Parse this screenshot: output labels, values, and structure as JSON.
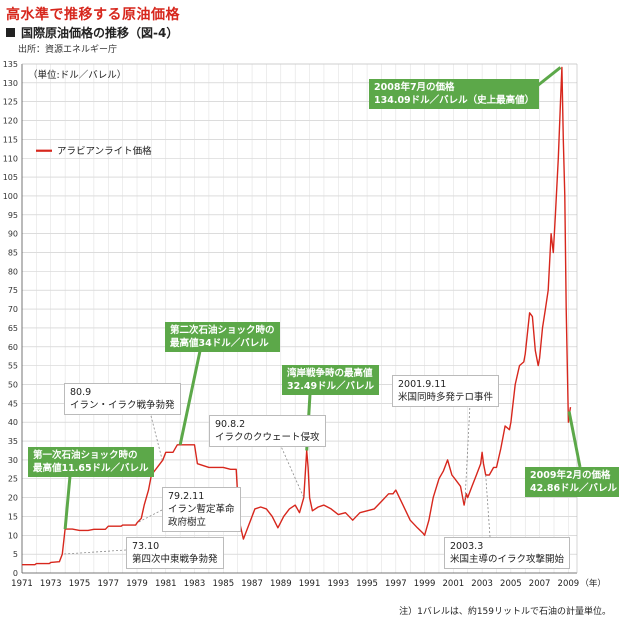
{
  "header": {
    "title": "高水準で推移する原油価格",
    "subtitle": "国際原油価格の推移（図-4）",
    "source": "出所：資源エネルギー庁"
  },
  "footnote": "注）1バレルは、約159リットルで石油の計量単位。",
  "colors": {
    "line": "#d7271d",
    "callout_green": "#5ca849",
    "title": "#d7271d"
  },
  "chart_data": {
    "type": "line",
    "ylabel": "（単位:ドル／バレル）",
    "xlabel_suffix": "（年）",
    "ylim": [
      0,
      135
    ],
    "xlim": [
      1971,
      2009.6
    ],
    "grid": true,
    "legend_position": "top-left",
    "y_ticks": [
      0,
      5,
      10,
      15,
      20,
      25,
      30,
      35,
      40,
      45,
      50,
      55,
      60,
      65,
      70,
      75,
      80,
      85,
      90,
      95,
      100,
      105,
      110,
      115,
      120,
      125,
      130,
      135
    ],
    "x_tick_labels": [
      "1971",
      "1973",
      "1975",
      "1977",
      "1979",
      "1981",
      "1983",
      "1985",
      "1987",
      "1989",
      "1991",
      "1993",
      "1995",
      "1997",
      "1999",
      "2001",
      "2003",
      "2005",
      "2007",
      "2009"
    ],
    "series": [
      {
        "name": "アラビアンライト価格",
        "color": "#d7271d",
        "x": [
          1971.0,
          1971.9,
          1972.0,
          1972.9,
          1973.0,
          1973.6,
          1973.8,
          1974.0,
          1974.5,
          1975.0,
          1975.6,
          1976.0,
          1976.8,
          1977.0,
          1977.9,
          1978.0,
          1978.9,
          1979.0,
          1979.3,
          1979.5,
          1979.8,
          1980.0,
          1980.4,
          1980.8,
          1981.0,
          1981.5,
          1981.8,
          1982.5,
          1983.0,
          1983.2,
          1984.0,
          1985.0,
          1985.5,
          1985.9,
          1986.1,
          1986.4,
          1986.6,
          1986.9,
          1987.2,
          1987.6,
          1988.0,
          1988.4,
          1988.8,
          1989.2,
          1989.6,
          1990.0,
          1990.3,
          1990.6,
          1990.8,
          1990.9,
          1991.0,
          1991.2,
          1991.6,
          1992.0,
          1992.5,
          1993.0,
          1993.5,
          1994.0,
          1994.5,
          1995.0,
          1995.5,
          1996.0,
          1996.5,
          1996.8,
          1997.0,
          1997.5,
          1998.0,
          1998.5,
          1998.9,
          1999.0,
          1999.3,
          1999.6,
          2000.0,
          2000.3,
          2000.6,
          2000.9,
          2001.1,
          2001.5,
          2001.75,
          2001.9,
          2002.0,
          2002.3,
          2002.6,
          2002.9,
          2003.0,
          2003.1,
          2003.25,
          2003.5,
          2003.8,
          2004.0,
          2004.3,
          2004.6,
          2004.9,
          2005.0,
          2005.3,
          2005.6,
          2005.9,
          2006.0,
          2006.3,
          2006.5,
          2006.7,
          2006.9,
          2007.0,
          2007.2,
          2007.4,
          2007.6,
          2007.8,
          2007.95,
          2008.1,
          2008.3,
          2008.45,
          2008.55,
          2008.65,
          2008.75,
          2008.85,
          2009.0,
          2009.1,
          2009.15
        ],
        "values": [
          2.2,
          2.2,
          2.5,
          2.5,
          2.8,
          3.0,
          5.0,
          11.65,
          11.65,
          11.3,
          11.3,
          11.6,
          11.6,
          12.4,
          12.4,
          12.7,
          12.7,
          13.3,
          14.5,
          18.0,
          22.0,
          26.0,
          28.0,
          30.0,
          32.0,
          32.0,
          34.0,
          34.0,
          34.0,
          29.0,
          28.0,
          28.0,
          27.5,
          27.5,
          14.0,
          9.0,
          11.0,
          14.0,
          17.0,
          17.5,
          17.0,
          15.0,
          12.0,
          15.0,
          17.0,
          18.0,
          16.0,
          20.0,
          32.49,
          28.0,
          20.0,
          16.5,
          17.5,
          18.0,
          17.0,
          15.5,
          16.0,
          14.0,
          16.0,
          16.5,
          17.0,
          19.0,
          21.0,
          21.0,
          22.0,
          18.0,
          14.0,
          12.0,
          10.5,
          10.0,
          14.0,
          20.0,
          25.0,
          27.0,
          30.0,
          26.0,
          25.0,
          23.0,
          18.0,
          21.0,
          20.0,
          23.0,
          26.0,
          29.0,
          32.0,
          29.0,
          26.0,
          26.0,
          28.0,
          28.0,
          33.0,
          39.0,
          38.0,
          40.0,
          50.0,
          55.0,
          56.0,
          58.0,
          69.0,
          68.0,
          59.0,
          55.0,
          57.0,
          65.0,
          70.0,
          75.0,
          90.0,
          85.0,
          95.0,
          110.0,
          125.0,
          134.09,
          115.0,
          100.0,
          70.0,
          40.0,
          42.86,
          44.0
        ]
      }
    ],
    "annotations": [
      {
        "id": "peak_2008",
        "style": "green",
        "lines": [
          "2008年7月の価格",
          "134.09ドル／バレル（史上最高値）"
        ]
      },
      {
        "id": "first_shock",
        "style": "green",
        "lines": [
          "第一次石油ショック時の",
          "最高値11.65ドル／バレル"
        ]
      },
      {
        "id": "second_shock",
        "style": "green",
        "lines": [
          "第二次石油ショック時の",
          "最高値34ドル／バレル"
        ]
      },
      {
        "id": "gulf_war",
        "style": "green",
        "lines": [
          "湾岸戦争時の最高値",
          "32.49ドル／バレル"
        ]
      },
      {
        "id": "feb_2009",
        "style": "green",
        "lines": [
          "2009年2月の価格",
          "42.86ドル／バレル"
        ]
      },
      {
        "id": "iran_iraq",
        "style": "white",
        "lines": [
          "80.9",
          "イラン・イラク戦争勃発"
        ]
      },
      {
        "id": "iran_rev",
        "style": "white",
        "lines": [
          "79.2.11",
          "イラン暫定革命",
          "政府樹立"
        ]
      },
      {
        "id": "mideast_war",
        "style": "white",
        "lines": [
          "73.10",
          "第四次中東戦争勃発"
        ]
      },
      {
        "id": "kuwait",
        "style": "white",
        "lines": [
          "90.8.2",
          "イラクのクウェート侵攻"
        ]
      },
      {
        "id": "sep11",
        "style": "white",
        "lines": [
          "2001.9.11",
          "米国同時多発テロ事件"
        ]
      },
      {
        "id": "iraq_attack",
        "style": "white",
        "lines": [
          "2003.3",
          "米国主導のイラク攻撃開始"
        ]
      }
    ]
  }
}
